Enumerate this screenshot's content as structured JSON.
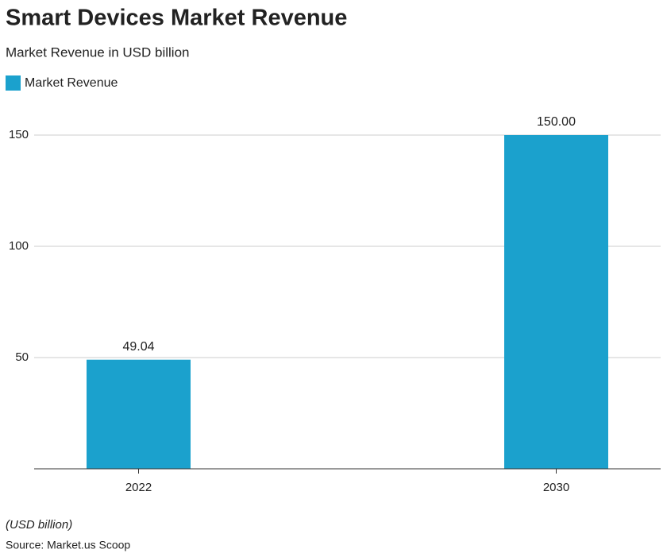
{
  "chart_data": {
    "type": "bar",
    "title": "Smart Devices Market Revenue",
    "subtitle": "Market Revenue in USD billion",
    "categories": [
      "2022",
      "2030"
    ],
    "series": [
      {
        "name": "Market Revenue",
        "color": "#1ba1cd",
        "values": [
          49.04,
          150
        ],
        "value_labels": [
          "49.04",
          "150.00"
        ]
      }
    ],
    "ylim": [
      0,
      160
    ],
    "yticks": [
      50,
      100,
      150
    ],
    "grid": true,
    "note": "(USD billion)",
    "source": "Source: Market.us Scoop"
  }
}
